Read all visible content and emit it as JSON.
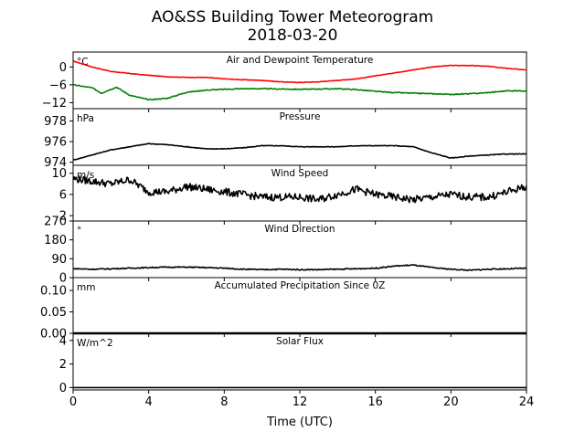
{
  "title": "AO&SS Building Tower Meteorogram",
  "subtitle": "2018-03-20",
  "xlabel": "Time (UTC)",
  "xticks": [
    "0",
    "4",
    "8",
    "12",
    "16",
    "20",
    "24"
  ],
  "colors": {
    "temperature": "#ff0000",
    "dewpoint": "#008000",
    "line": "#000000"
  },
  "chart_data": [
    {
      "type": "line",
      "title": "Air and Dewpoint Temperature",
      "unit": "°C",
      "ylim": [
        -14,
        5
      ],
      "yticks": [
        0,
        -6,
        -12
      ],
      "ytick_labels": [
        "0",
        "−6",
        "−12"
      ],
      "x_range": [
        0,
        24
      ],
      "series": [
        {
          "color": "#ff0000",
          "x": [
            0,
            1,
            2,
            3,
            4,
            5,
            6,
            7,
            8,
            9,
            10,
            11,
            12,
            13,
            14,
            15,
            16,
            17,
            18,
            19,
            20,
            21,
            22,
            23,
            24
          ],
          "values": [
            2.0,
            0.0,
            -1.5,
            -2.2,
            -2.8,
            -3.3,
            -3.5,
            -3.5,
            -4.0,
            -4.3,
            -4.5,
            -5.0,
            -5.2,
            -5.0,
            -4.5,
            -4.0,
            -3.0,
            -2.0,
            -1.0,
            0.0,
            0.5,
            0.5,
            0.2,
            -0.5,
            -1.0
          ]
        },
        {
          "color": "#008000",
          "x": [
            0,
            1,
            1.5,
            2,
            2.3,
            3,
            4,
            5,
            6,
            7,
            8,
            9,
            10,
            11,
            12,
            13,
            14,
            15,
            16,
            17,
            18,
            19,
            20,
            21,
            22,
            23,
            24
          ],
          "values": [
            -6.0,
            -7.0,
            -8.8,
            -7.5,
            -6.8,
            -9.5,
            -11.0,
            -10.5,
            -8.5,
            -7.8,
            -7.5,
            -7.3,
            -7.3,
            -7.4,
            -7.5,
            -7.4,
            -7.3,
            -7.6,
            -8.2,
            -8.6,
            -8.8,
            -9.0,
            -9.2,
            -9.0,
            -8.6,
            -8.0,
            -8.0
          ]
        }
      ]
    },
    {
      "type": "line",
      "title": "Pressure",
      "unit": "hPa",
      "ylim": [
        973.7,
        979.2
      ],
      "yticks": [
        974,
        976,
        978
      ],
      "ytick_labels": [
        "974",
        "976",
        "978"
      ],
      "x_range": [
        0,
        24
      ],
      "series": [
        {
          "color": "#000000",
          "x": [
            0,
            1,
            2,
            3,
            4,
            5,
            6,
            7,
            8,
            9,
            10,
            11,
            12,
            13,
            14,
            15,
            16,
            17,
            18,
            19,
            20,
            21,
            22,
            23,
            24
          ],
          "values": [
            974.2,
            974.7,
            975.2,
            975.5,
            975.8,
            975.7,
            975.5,
            975.3,
            975.3,
            975.4,
            975.6,
            975.6,
            975.5,
            975.5,
            975.5,
            975.6,
            975.6,
            975.6,
            975.5,
            974.9,
            974.4,
            974.6,
            974.7,
            974.8,
            974.8
          ]
        }
      ]
    },
    {
      "type": "line",
      "title": "Wind Speed",
      "unit": "m/s",
      "ylim": [
        1,
        11.5
      ],
      "yticks": [
        2,
        6,
        10
      ],
      "ytick_labels": [
        "2",
        "6",
        "10"
      ],
      "x_range": [
        0,
        24
      ],
      "series": [
        {
          "color": "#000000",
          "x": [
            0,
            1,
            2,
            3,
            4,
            5,
            6,
            7,
            8,
            9,
            10,
            11,
            12,
            13,
            14,
            15,
            16,
            17,
            18,
            19,
            20,
            21,
            22,
            23,
            24
          ],
          "values": [
            9.0,
            8.5,
            8.0,
            8.8,
            6.5,
            6.5,
            7.5,
            7.0,
            6.5,
            6.0,
            5.5,
            5.5,
            5.5,
            5.0,
            6.0,
            7.0,
            6.0,
            5.5,
            5.0,
            5.5,
            6.0,
            5.5,
            5.5,
            6.5,
            7.5
          ]
        }
      ]
    },
    {
      "type": "line",
      "title": "Wind Direction",
      "unit": "°",
      "ylim": [
        0,
        270
      ],
      "yticks": [
        0,
        90,
        180,
        270
      ],
      "ytick_labels": [
        "0",
        "90",
        "180",
        "270"
      ],
      "x_range": [
        0,
        24
      ],
      "series": [
        {
          "color": "#000000",
          "x": [
            0,
            1,
            2,
            3,
            4,
            5,
            6,
            7,
            8,
            9,
            10,
            11,
            12,
            13,
            14,
            15,
            16,
            17,
            18,
            19,
            20,
            21,
            22,
            23,
            24
          ],
          "values": [
            43,
            40,
            42,
            45,
            48,
            50,
            50,
            48,
            45,
            40,
            38,
            40,
            38,
            38,
            40,
            42,
            45,
            55,
            60,
            48,
            40,
            35,
            40,
            42,
            45
          ]
        }
      ]
    },
    {
      "type": "line",
      "title": "Accumulated Precipitation Since 0Z",
      "unit": "mm",
      "ylim": [
        0,
        0.13
      ],
      "yticks": [
        0,
        0.05,
        0.1
      ],
      "ytick_labels": [
        "0.00",
        "0.05",
        "0.10"
      ],
      "x_range": [
        0,
        24
      ],
      "series": [
        {
          "color": "#000000",
          "x": [
            0,
            24
          ],
          "values": [
            0,
            0
          ]
        }
      ]
    },
    {
      "type": "line",
      "title": "Solar Flux",
      "unit": "W/m^2",
      "ylim": [
        -0.2,
        4.6
      ],
      "yticks": [
        0,
        2,
        4
      ],
      "ytick_labels": [
        "0",
        "2",
        "4"
      ],
      "x_range": [
        0,
        24
      ],
      "series": [
        {
          "color": "#000000",
          "x": [
            0,
            24
          ],
          "values": [
            0,
            0
          ]
        }
      ]
    }
  ]
}
